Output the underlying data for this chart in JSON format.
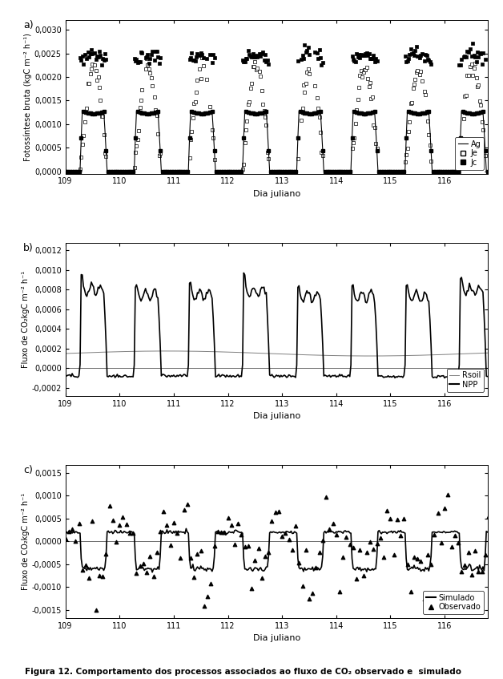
{
  "title_caption": "Figura 12. Comportamento dos processos associados ao fluxo de CO₂ observado e\n  simulado",
  "panel_a": {
    "ylabel": "Fotossíntese bruta (kgC m⁻² h⁻¹)",
    "xlabel": "Dia juliano",
    "ylim": [
      -5e-05,
      0.0032
    ],
    "yticks": [
      0.0,
      0.0005,
      0.001,
      0.0015,
      0.002,
      0.0025,
      0.003
    ],
    "ytick_labels": [
      "0,0000",
      "0,0005",
      "0,0010",
      "0,0015",
      "0,0020",
      "0,0025",
      "0,0030"
    ],
    "xlim": [
      109,
      116.8
    ],
    "xticks": [
      109,
      110,
      111,
      112,
      113,
      114,
      115,
      116
    ],
    "legend": [
      "Ag",
      "Je",
      "Jc"
    ]
  },
  "panel_b": {
    "ylabel": "Fluxo de CO₂kgC m⁻² h⁻¹",
    "xlabel": "Dia juliano",
    "ylim": [
      -0.00028,
      0.00128
    ],
    "yticks": [
      -0.0002,
      0.0,
      0.0002,
      0.0004,
      0.0006,
      0.0008,
      0.001,
      0.0012
    ],
    "ytick_labels": [
      "-0,0002",
      "0,0000",
      "0,0002",
      "0,0004",
      "0,0006",
      "0,0008",
      "0,0010",
      "0,0012"
    ],
    "xlim": [
      109,
      116.8
    ],
    "xticks": [
      109,
      110,
      111,
      112,
      113,
      114,
      115,
      116
    ],
    "legend": [
      "Rsoil",
      "NPP"
    ]
  },
  "panel_c": {
    "ylabel": "Fluxo de CO₂kgC m⁻² h⁻¹",
    "xlabel": "Dia juliano",
    "ylim": [
      -0.00168,
      0.00168
    ],
    "yticks": [
      -0.0015,
      -0.001,
      -0.0005,
      0.0,
      0.0005,
      0.001,
      0.0015
    ],
    "ytick_labels": [
      "-0,0015",
      "-0,0010",
      "-0,0005",
      "0,0000",
      "0,0005",
      "0,0010",
      "0,0015"
    ],
    "xlim": [
      109,
      116.8
    ],
    "xticks": [
      109,
      110,
      111,
      112,
      113,
      114,
      115,
      116
    ],
    "legend": [
      "Simulado",
      "Observado"
    ]
  },
  "background_color": "#ffffff"
}
